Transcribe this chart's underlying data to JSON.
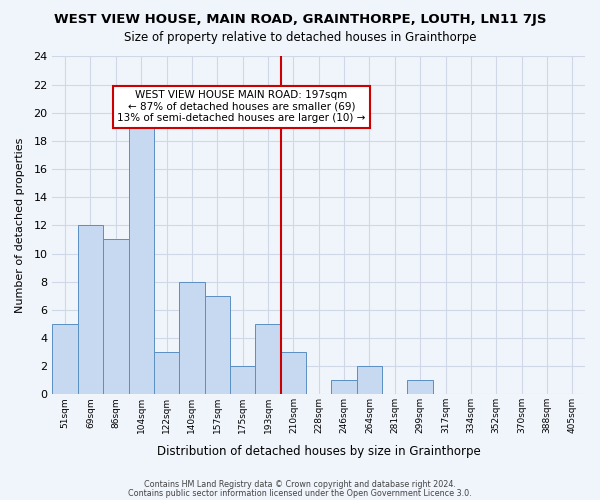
{
  "title": "WEST VIEW HOUSE, MAIN ROAD, GRAINTHORPE, LOUTH, LN11 7JS",
  "subtitle": "Size of property relative to detached houses in Grainthorpe",
  "xlabel": "Distribution of detached houses by size in Grainthorpe",
  "ylabel": "Number of detached properties",
  "bin_labels": [
    "51sqm",
    "69sqm",
    "86sqm",
    "104sqm",
    "122sqm",
    "140sqm",
    "157sqm",
    "175sqm",
    "193sqm",
    "210sqm",
    "228sqm",
    "246sqm",
    "264sqm",
    "281sqm",
    "299sqm",
    "317sqm",
    "334sqm",
    "352sqm",
    "370sqm",
    "388sqm",
    "405sqm"
  ],
  "bar_heights": [
    5,
    12,
    11,
    19,
    3,
    8,
    7,
    2,
    5,
    3,
    0,
    1,
    2,
    0,
    1,
    0,
    0,
    0,
    0,
    0,
    0
  ],
  "bar_color": "#c6d9f0",
  "bar_edge_color": "#5a8fc2",
  "vline_x_index": 8,
  "vline_color": "#cc0000",
  "annotation_text": "WEST VIEW HOUSE MAIN ROAD: 197sqm\n← 87% of detached houses are smaller (69)\n13% of semi-detached houses are larger (10) →",
  "annotation_box_color": "#ffffff",
  "annotation_box_edge": "#cc0000",
  "ylim": [
    0,
    24
  ],
  "yticks": [
    0,
    2,
    4,
    6,
    8,
    10,
    12,
    14,
    16,
    18,
    20,
    22,
    24
  ],
  "footer1": "Contains HM Land Registry data © Crown copyright and database right 2024.",
  "footer2": "Contains public sector information licensed under the Open Government Licence 3.0.",
  "grid_color": "#d0d8e8",
  "background_color": "#f0f4fb"
}
